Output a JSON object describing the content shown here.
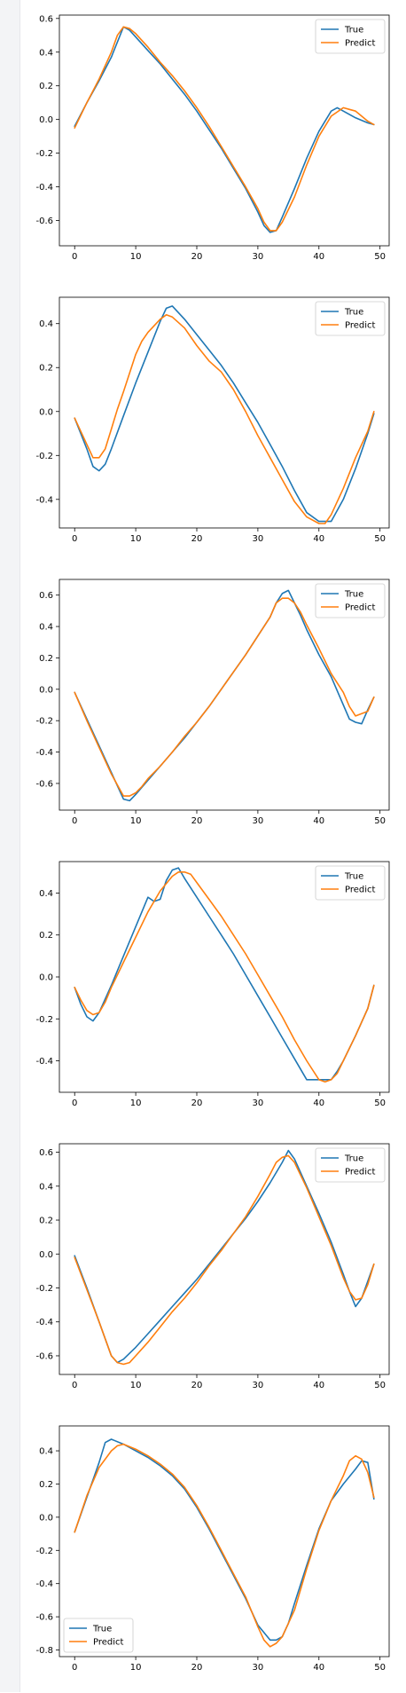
{
  "chart_data": [
    {
      "type": "line",
      "ylim": [
        -0.75,
        0.62
      ],
      "xlim": [
        -2.5,
        51.5
      ],
      "xticks": [
        "0",
        "10",
        "20",
        "30",
        "40",
        "50"
      ],
      "yticks": [
        "-0.6",
        "-0.4",
        "-0.2",
        "0.0",
        "0.2",
        "0.4",
        "0.6"
      ],
      "legend": "upper-right",
      "series": [
        {
          "name": "True",
          "color": "#1f77b4",
          "x": [
            0,
            2,
            4,
            6,
            8,
            9,
            10,
            12,
            14,
            16,
            18,
            20,
            22,
            24,
            26,
            28,
            30,
            31,
            32,
            33,
            34,
            36,
            38,
            40,
            42,
            43,
            44,
            46,
            48,
            49
          ],
          "y": [
            -0.04,
            0.1,
            0.23,
            0.37,
            0.55,
            0.53,
            0.49,
            0.41,
            0.33,
            0.24,
            0.15,
            0.05,
            -0.06,
            -0.17,
            -0.29,
            -0.41,
            -0.55,
            -0.63,
            -0.67,
            -0.66,
            -0.58,
            -0.41,
            -0.23,
            -0.07,
            0.05,
            0.07,
            0.05,
            0.01,
            -0.02,
            -0.03
          ]
        },
        {
          "name": "Predict",
          "color": "#ff7f0e",
          "x": [
            0,
            2,
            4,
            6,
            7,
            8,
            9,
            10,
            12,
            14,
            16,
            18,
            20,
            22,
            24,
            26,
            28,
            30,
            31,
            32,
            33,
            34,
            36,
            38,
            40,
            42,
            44,
            45,
            46,
            48,
            49
          ],
          "y": [
            -0.05,
            0.1,
            0.24,
            0.4,
            0.5,
            0.55,
            0.54,
            0.51,
            0.43,
            0.34,
            0.26,
            0.17,
            0.07,
            -0.04,
            -0.16,
            -0.28,
            -0.4,
            -0.53,
            -0.61,
            -0.66,
            -0.66,
            -0.61,
            -0.46,
            -0.27,
            -0.1,
            0.02,
            0.07,
            0.06,
            0.05,
            -0.01,
            -0.03
          ]
        }
      ]
    },
    {
      "type": "line",
      "ylim": [
        -0.53,
        0.52
      ],
      "xlim": [
        -2.5,
        51.5
      ],
      "xticks": [
        "0",
        "10",
        "20",
        "30",
        "40",
        "50"
      ],
      "yticks": [
        "-0.4",
        "-0.2",
        "0.0",
        "0.2",
        "0.4"
      ],
      "legend": "upper-right",
      "series": [
        {
          "name": "True",
          "color": "#1f77b4",
          "x": [
            0,
            2,
            3,
            4,
            5,
            6,
            8,
            10,
            12,
            14,
            15,
            16,
            18,
            20,
            22,
            24,
            26,
            28,
            30,
            32,
            34,
            36,
            38,
            40,
            41,
            42,
            44,
            46,
            48,
            49
          ],
          "y": [
            -0.03,
            -0.17,
            -0.25,
            -0.27,
            -0.24,
            -0.17,
            -0.02,
            0.13,
            0.27,
            0.41,
            0.47,
            0.48,
            0.42,
            0.35,
            0.28,
            0.21,
            0.13,
            0.04,
            -0.05,
            -0.15,
            -0.25,
            -0.36,
            -0.46,
            -0.5,
            -0.5,
            -0.5,
            -0.4,
            -0.26,
            -0.1,
            -0.01
          ]
        },
        {
          "name": "Predict",
          "color": "#ff7f0e",
          "x": [
            0,
            2,
            3,
            4,
            5,
            6,
            7,
            8,
            10,
            11,
            12,
            14,
            15,
            16,
            18,
            20,
            22,
            24,
            26,
            28,
            30,
            32,
            34,
            36,
            38,
            40,
            41,
            42,
            44,
            46,
            48,
            49
          ],
          "y": [
            -0.03,
            -0.15,
            -0.21,
            -0.21,
            -0.17,
            -0.08,
            0.01,
            0.09,
            0.26,
            0.32,
            0.36,
            0.42,
            0.44,
            0.43,
            0.38,
            0.3,
            0.23,
            0.18,
            0.1,
            0.0,
            -0.11,
            -0.21,
            -0.31,
            -0.41,
            -0.48,
            -0.51,
            -0.51,
            -0.47,
            -0.35,
            -0.21,
            -0.09,
            0.0
          ]
        }
      ]
    },
    {
      "type": "line",
      "ylim": [
        -0.77,
        0.7
      ],
      "xlim": [
        -2.5,
        51.5
      ],
      "xticks": [
        "0",
        "10",
        "20",
        "30",
        "40",
        "50"
      ],
      "yticks": [
        "-0.6",
        "-0.4",
        "-0.2",
        "0.0",
        "0.2",
        "0.4",
        "0.6"
      ],
      "legend": "upper-right",
      "series": [
        {
          "name": "True",
          "color": "#1f77b4",
          "x": [
            0,
            2,
            4,
            6,
            8,
            9,
            10,
            12,
            14,
            16,
            18,
            20,
            22,
            24,
            26,
            28,
            30,
            32,
            33,
            34,
            35,
            36,
            37,
            38,
            40,
            42,
            44,
            45,
            46,
            47,
            48,
            49
          ],
          "y": [
            -0.02,
            -0.19,
            -0.36,
            -0.53,
            -0.7,
            -0.71,
            -0.67,
            -0.58,
            -0.49,
            -0.4,
            -0.31,
            -0.21,
            -0.11,
            0.0,
            0.11,
            0.22,
            0.34,
            0.46,
            0.55,
            0.61,
            0.63,
            0.55,
            0.47,
            0.38,
            0.22,
            0.08,
            -0.1,
            -0.19,
            -0.21,
            -0.22,
            -0.13,
            -0.05
          ]
        },
        {
          "name": "Predict",
          "color": "#ff7f0e",
          "x": [
            0,
            2,
            4,
            6,
            8,
            9,
            10,
            11,
            12,
            14,
            16,
            18,
            20,
            22,
            24,
            26,
            28,
            30,
            32,
            33,
            34,
            35,
            36,
            37,
            38,
            40,
            42,
            44,
            45,
            46,
            48,
            49
          ],
          "y": [
            -0.02,
            -0.2,
            -0.37,
            -0.54,
            -0.68,
            -0.68,
            -0.66,
            -0.62,
            -0.57,
            -0.49,
            -0.4,
            -0.3,
            -0.21,
            -0.11,
            0.0,
            0.11,
            0.22,
            0.34,
            0.46,
            0.55,
            0.58,
            0.58,
            0.55,
            0.49,
            0.41,
            0.26,
            0.1,
            -0.02,
            -0.11,
            -0.17,
            -0.14,
            -0.05
          ]
        }
      ]
    },
    {
      "type": "line",
      "ylim": [
        -0.55,
        0.55
      ],
      "xlim": [
        -2.5,
        51.5
      ],
      "xticks": [
        "0",
        "10",
        "20",
        "30",
        "40",
        "50"
      ],
      "yticks": [
        "-0.4",
        "-0.2",
        "0.0",
        "0.2",
        "0.4"
      ],
      "legend": "upper-right",
      "series": [
        {
          "name": "True",
          "color": "#1f77b4",
          "x": [
            0,
            1,
            2,
            3,
            4,
            6,
            8,
            10,
            12,
            13,
            14,
            15,
            16,
            17,
            18,
            20,
            22,
            24,
            26,
            28,
            30,
            32,
            34,
            36,
            38,
            40,
            41,
            42,
            43,
            44,
            46,
            48,
            49
          ],
          "y": [
            -0.05,
            -0.13,
            -0.19,
            -0.21,
            -0.17,
            -0.04,
            0.1,
            0.24,
            0.38,
            0.36,
            0.37,
            0.46,
            0.51,
            0.52,
            0.47,
            0.38,
            0.29,
            0.2,
            0.11,
            0.01,
            -0.09,
            -0.19,
            -0.29,
            -0.39,
            -0.49,
            -0.49,
            -0.49,
            -0.49,
            -0.45,
            -0.4,
            -0.28,
            -0.15,
            -0.04
          ]
        },
        {
          "name": "Predict",
          "color": "#ff7f0e",
          "x": [
            0,
            1,
            2,
            3,
            4,
            5,
            6,
            8,
            10,
            12,
            14,
            16,
            17,
            18,
            19,
            20,
            22,
            24,
            26,
            28,
            30,
            32,
            34,
            36,
            38,
            40,
            41,
            42,
            43,
            44,
            46,
            48,
            49
          ],
          "y": [
            -0.05,
            -0.11,
            -0.16,
            -0.18,
            -0.17,
            -0.12,
            -0.05,
            0.07,
            0.19,
            0.31,
            0.41,
            0.48,
            0.5,
            0.5,
            0.49,
            0.45,
            0.37,
            0.29,
            0.2,
            0.11,
            0.01,
            -0.09,
            -0.19,
            -0.3,
            -0.4,
            -0.49,
            -0.5,
            -0.49,
            -0.46,
            -0.4,
            -0.28,
            -0.15,
            -0.04
          ]
        }
      ]
    },
    {
      "type": "line",
      "ylim": [
        -0.71,
        0.65
      ],
      "xlim": [
        -2.5,
        51.5
      ],
      "xticks": [
        "0",
        "10",
        "20",
        "30",
        "40",
        "50"
      ],
      "yticks": [
        "-0.6",
        "-0.4",
        "-0.2",
        "0.0",
        "0.2",
        "0.4",
        "0.6"
      ],
      "legend": "upper-right",
      "series": [
        {
          "name": "True",
          "color": "#1f77b4",
          "x": [
            0,
            2,
            4,
            6,
            7,
            8,
            10,
            12,
            14,
            16,
            18,
            20,
            22,
            24,
            26,
            28,
            30,
            32,
            34,
            35,
            36,
            38,
            40,
            42,
            44,
            45,
            46,
            47,
            48,
            49
          ],
          "y": [
            -0.01,
            -0.2,
            -0.4,
            -0.6,
            -0.64,
            -0.62,
            -0.55,
            -0.47,
            -0.39,
            -0.31,
            -0.23,
            -0.15,
            -0.06,
            0.03,
            0.12,
            0.21,
            0.31,
            0.42,
            0.54,
            0.61,
            0.56,
            0.4,
            0.24,
            0.07,
            -0.12,
            -0.22,
            -0.31,
            -0.26,
            -0.16,
            -0.06
          ]
        },
        {
          "name": "Predict",
          "color": "#ff7f0e",
          "x": [
            0,
            2,
            4,
            6,
            7,
            8,
            9,
            10,
            12,
            14,
            16,
            18,
            20,
            22,
            24,
            26,
            28,
            30,
            32,
            33,
            34,
            35,
            36,
            38,
            40,
            42,
            44,
            45,
            46,
            47,
            48,
            49
          ],
          "y": [
            -0.02,
            -0.21,
            -0.4,
            -0.6,
            -0.64,
            -0.65,
            -0.64,
            -0.6,
            -0.52,
            -0.43,
            -0.34,
            -0.26,
            -0.17,
            -0.07,
            0.02,
            0.12,
            0.22,
            0.34,
            0.47,
            0.54,
            0.57,
            0.58,
            0.54,
            0.39,
            0.22,
            0.05,
            -0.14,
            -0.22,
            -0.27,
            -0.26,
            -0.18,
            -0.06
          ]
        }
      ]
    },
    {
      "type": "line",
      "ylim": [
        -0.84,
        0.55
      ],
      "xlim": [
        -2.5,
        51.5
      ],
      "xticks": [
        "0",
        "10",
        "20",
        "30",
        "40",
        "50"
      ],
      "yticks": [
        "-0.8",
        "-0.6",
        "-0.4",
        "-0.2",
        "0.0",
        "0.2",
        "0.4"
      ],
      "legend": "lower-left",
      "series": [
        {
          "name": "True",
          "color": "#1f77b4",
          "x": [
            0,
            2,
            4,
            5,
            6,
            8,
            10,
            12,
            14,
            16,
            18,
            20,
            22,
            24,
            26,
            28,
            30,
            32,
            33,
            34,
            35,
            36,
            38,
            40,
            42,
            44,
            46,
            47,
            48,
            49
          ],
          "y": [
            -0.09,
            0.12,
            0.33,
            0.45,
            0.47,
            0.44,
            0.4,
            0.36,
            0.31,
            0.25,
            0.17,
            0.06,
            -0.07,
            -0.21,
            -0.35,
            -0.49,
            -0.65,
            -0.74,
            -0.74,
            -0.72,
            -0.64,
            -0.52,
            -0.29,
            -0.07,
            0.1,
            0.2,
            0.29,
            0.34,
            0.33,
            0.11
          ]
        },
        {
          "name": "Predict",
          "color": "#ff7f0e",
          "x": [
            0,
            2,
            4,
            6,
            7,
            8,
            10,
            12,
            14,
            16,
            18,
            20,
            22,
            24,
            26,
            28,
            30,
            31,
            32,
            33,
            34,
            36,
            38,
            40,
            42,
            44,
            45,
            46,
            47,
            48,
            49
          ],
          "y": [
            -0.09,
            0.13,
            0.3,
            0.4,
            0.43,
            0.44,
            0.41,
            0.37,
            0.32,
            0.26,
            0.18,
            0.07,
            -0.06,
            -0.2,
            -0.34,
            -0.48,
            -0.66,
            -0.74,
            -0.78,
            -0.76,
            -0.72,
            -0.56,
            -0.31,
            -0.08,
            0.1,
            0.25,
            0.34,
            0.37,
            0.35,
            0.27,
            0.12
          ]
        }
      ]
    }
  ]
}
